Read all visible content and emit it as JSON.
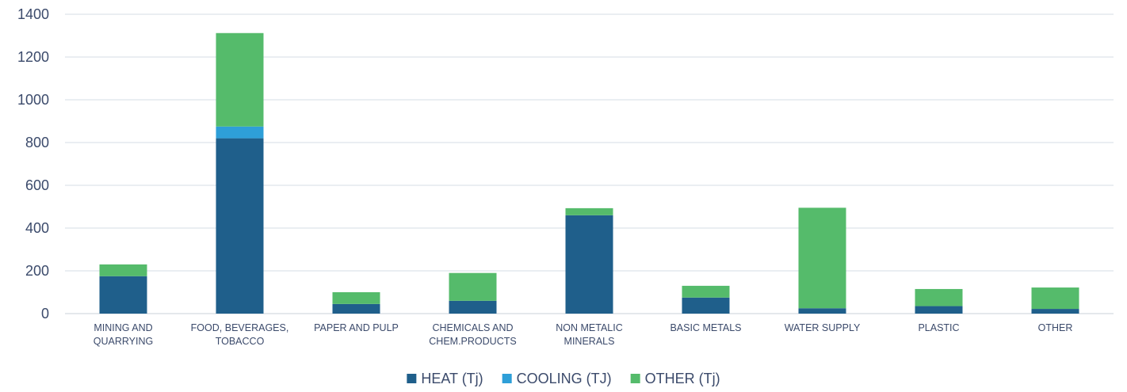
{
  "chart_data": {
    "type": "bar",
    "stacked": true,
    "categories": [
      [
        "MINING AND",
        "QUARRYING"
      ],
      [
        "FOOD, BEVERAGES,",
        "TOBACCO"
      ],
      [
        "PAPER AND PULP"
      ],
      [
        "CHEMICALS AND",
        "CHEM.PRODUCTS"
      ],
      [
        "NON METALIC",
        "MINERALS"
      ],
      [
        "BASIC METALS"
      ],
      [
        "WATER SUPPLY"
      ],
      [
        "PLASTIC"
      ],
      [
        "OTHER"
      ]
    ],
    "series": [
      {
        "name": "HEAT (Tj)",
        "color": "#1f5f8b",
        "values": [
          175,
          820,
          45,
          60,
          460,
          75,
          25,
          35,
          22
        ]
      },
      {
        "name": "COOLING (TJ)",
        "color": "#2e9fd8",
        "values": [
          0,
          55,
          0,
          0,
          0,
          0,
          0,
          0,
          0
        ]
      },
      {
        "name": "OTHER (Tj)",
        "color": "#55bb6b",
        "values": [
          55,
          437,
          55,
          130,
          33,
          55,
          470,
          80,
          100
        ]
      }
    ],
    "ylim": [
      0,
      1400
    ],
    "yticks": [
      0,
      200,
      400,
      600,
      800,
      1000,
      1200,
      1400
    ],
    "grid": true,
    "legend_position": "bottom-center",
    "title": "",
    "xlabel": "",
    "ylabel": ""
  }
}
